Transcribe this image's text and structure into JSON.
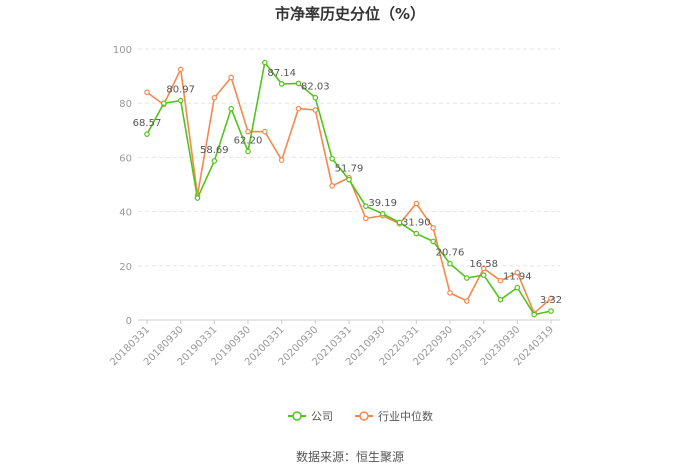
{
  "chart_data": {
    "type": "line",
    "title": "市净率历史分位（%）",
    "source": "数据来源：恒生聚源",
    "ylim": [
      0,
      100
    ],
    "yticks": [
      0,
      20,
      40,
      60,
      80,
      100
    ],
    "grid": "horizontal dashed",
    "legend_position": "bottom-center",
    "x_tick_labels": [
      "20180331",
      "20180930",
      "20190331",
      "20190930",
      "20200331",
      "20200930",
      "20210331",
      "20210930",
      "20220331",
      "20220930",
      "20230331",
      "20230930",
      "20240319"
    ],
    "x": [
      "20180331",
      "20180630",
      "20180930",
      "20181231",
      "20190331",
      "20190630",
      "20190930",
      "20191231",
      "20200331",
      "20200630",
      "20200930",
      "20201231",
      "20210331",
      "20210630",
      "20210930",
      "20211231",
      "20220331",
      "20220630",
      "20220930",
      "20221231",
      "20230331",
      "20230630",
      "20230930",
      "20231231",
      "20240319"
    ],
    "series": [
      {
        "name": "公司",
        "color": "#52c41a",
        "values": [
          68.57,
          80.0,
          80.97,
          45.0,
          58.69,
          78.0,
          62.2,
          95.0,
          87.14,
          87.3,
          82.03,
          59.5,
          51.79,
          42.0,
          39.19,
          36.0,
          31.9,
          29.0,
          20.76,
          15.5,
          16.58,
          7.5,
          11.94,
          2.0,
          3.32
        ]
      },
      {
        "name": "行业中位数",
        "color": "#f5884d",
        "values": [
          84.0,
          79.5,
          92.5,
          46.0,
          82.0,
          89.5,
          69.5,
          69.5,
          59.0,
          78.0,
          77.5,
          49.5,
          52.5,
          37.5,
          38.5,
          35.5,
          43.0,
          34.0,
          10.0,
          7.0,
          19.0,
          14.5,
          17.5,
          2.5,
          8.0
        ]
      }
    ],
    "data_labels": [
      {
        "series": 0,
        "index": 0,
        "text": "68.57"
      },
      {
        "series": 0,
        "index": 2,
        "text": "80.97"
      },
      {
        "series": 0,
        "index": 4,
        "text": "58.69"
      },
      {
        "series": 0,
        "index": 6,
        "text": "62.20"
      },
      {
        "series": 0,
        "index": 8,
        "text": "87.14"
      },
      {
        "series": 0,
        "index": 10,
        "text": "82.03"
      },
      {
        "series": 0,
        "index": 12,
        "text": "51.79"
      },
      {
        "series": 0,
        "index": 14,
        "text": "39.19"
      },
      {
        "series": 0,
        "index": 16,
        "text": "31.90"
      },
      {
        "series": 0,
        "index": 18,
        "text": "20.76"
      },
      {
        "series": 0,
        "index": 20,
        "text": "16.58"
      },
      {
        "series": 0,
        "index": 22,
        "text": "11.94"
      },
      {
        "series": 0,
        "index": 24,
        "text": "3.32"
      }
    ]
  }
}
